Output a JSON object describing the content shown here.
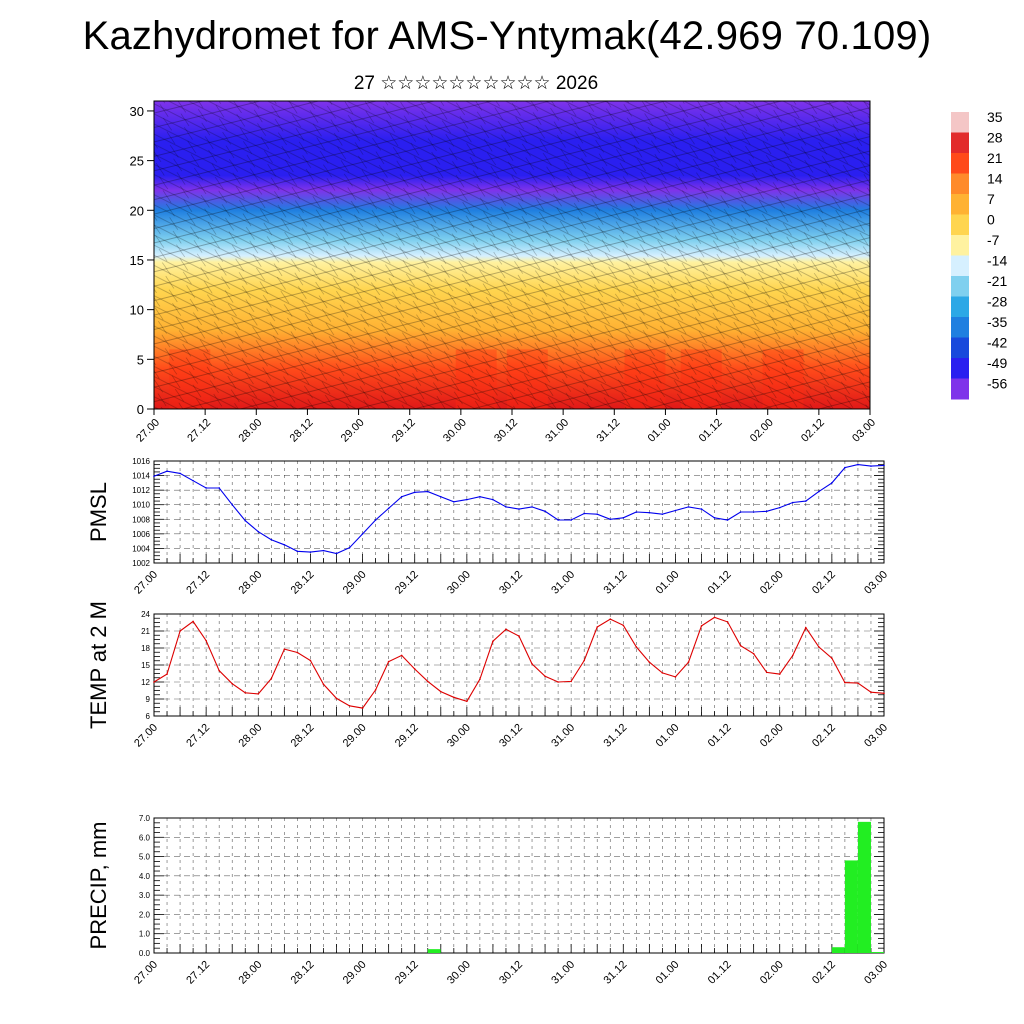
{
  "header": {
    "title": "Kazhydromet for AMS-Yntymak(42.969 70.109)",
    "subtitle": "27 ☆☆☆☆☆☆☆☆☆☆ 2026"
  },
  "x_ticks": [
    "27.00",
    "27.12",
    "28.00",
    "28.12",
    "29.00",
    "29.12",
    "30.00",
    "30.12",
    "31.00",
    "31.12",
    "01.00",
    "01.12",
    "02.00",
    "02.12",
    "03.00"
  ],
  "chart_data": [
    {
      "type": "heatmap",
      "name_id": "cross-section",
      "ylim": [
        0,
        31
      ],
      "yticks": [
        0,
        5,
        10,
        15,
        20,
        25,
        30
      ],
      "xlim": [
        0,
        14
      ],
      "colorbar": {
        "labels": [
          "35",
          "28",
          "21",
          "14",
          "7",
          "0",
          "-7",
          "-14",
          "-21",
          "-28",
          "-35",
          "-42",
          "-49",
          "-56"
        ],
        "colors": [
          "#f4c6c6",
          "#e22b2b",
          "#ff4a1a",
          "#ff8a2a",
          "#ffb233",
          "#ffd54f",
          "#fff2a0",
          "#d6f0ff",
          "#7fd0ef",
          "#2ca8e6",
          "#1f7fe0",
          "#1849dc",
          "#2a1ff0",
          "#7f33ea"
        ]
      },
      "temperature_profile": [
        {
          "height": 0,
          "value": 30
        },
        {
          "height": 4,
          "value": 18
        },
        {
          "height": 8,
          "value": 10
        },
        {
          "height": 12,
          "value": 3
        },
        {
          "height": 14.8,
          "value": -5
        },
        {
          "height": 15.4,
          "value": -12
        },
        {
          "height": 17,
          "value": -22
        },
        {
          "height": 20,
          "value": -38
        },
        {
          "height": 22,
          "value": -55
        },
        {
          "height": 23.5,
          "value": -50
        },
        {
          "height": 27,
          "value": -52
        },
        {
          "height": 31,
          "value": -56
        }
      ]
    },
    {
      "type": "line",
      "name_id": "pmsl",
      "ylabel": "PMSL",
      "ylim": [
        1002,
        1016
      ],
      "yticks": [
        1002,
        1004,
        1006,
        1008,
        1010,
        1012,
        1014,
        1016
      ],
      "color": "#0000ee",
      "x": [
        0,
        0.25,
        0.5,
        0.75,
        1,
        1.25,
        1.5,
        1.75,
        2,
        2.25,
        2.5,
        2.75,
        3,
        3.25,
        3.5,
        3.75,
        4,
        4.25,
        4.5,
        4.75,
        5,
        5.25,
        5.5,
        5.75,
        6,
        6.25,
        6.5,
        6.75,
        7,
        7.25,
        7.5,
        7.75,
        8,
        8.25,
        8.5,
        8.75,
        9,
        9.25,
        9.5,
        9.75,
        10,
        10.25,
        10.5,
        10.75,
        11,
        11.25,
        11.5,
        11.75,
        12,
        12.25,
        12.5,
        12.75,
        13,
        13.25,
        13.5,
        13.75,
        14
      ],
      "values": [
        1013.9,
        1014.6,
        1014.3,
        1013.3,
        1012.3,
        1012.3,
        1010.0,
        1007.8,
        1006.3,
        1005.2,
        1004.5,
        1003.6,
        1003.5,
        1003.7,
        1003.3,
        1004.1,
        1006.0,
        1007.9,
        1009.5,
        1011.1,
        1011.7,
        1011.8,
        1011.1,
        1010.4,
        1010.7,
        1011.1,
        1010.7,
        1009.7,
        1009.4,
        1009.7,
        1009.1,
        1007.9,
        1007.9,
        1008.8,
        1008.7,
        1008.0,
        1008.2,
        1009.0,
        1008.9,
        1008.7,
        1009.2,
        1009.7,
        1009.4,
        1008.2,
        1007.9,
        1009.0,
        1009.0,
        1009.1,
        1009.6,
        1010.3,
        1010.5,
        1011.8,
        1013.0,
        1015.1,
        1015.5,
        1015.3,
        1015.4
      ]
    },
    {
      "type": "line",
      "name_id": "temp-2m",
      "ylabel": "TEMP at 2 M",
      "ylim": [
        6,
        24
      ],
      "yticks": [
        6,
        9,
        12,
        15,
        18,
        21,
        24
      ],
      "color": "#dd0000",
      "x": [
        0,
        0.25,
        0.5,
        0.75,
        1,
        1.25,
        1.5,
        1.75,
        2,
        2.25,
        2.5,
        2.75,
        3,
        3.25,
        3.5,
        3.75,
        4,
        4.25,
        4.5,
        4.75,
        5,
        5.25,
        5.5,
        5.75,
        6,
        6.25,
        6.5,
        6.75,
        7,
        7.25,
        7.5,
        7.75,
        8,
        8.25,
        8.5,
        8.75,
        9,
        9.25,
        9.5,
        9.75,
        10,
        10.25,
        10.5,
        10.75,
        11,
        11.25,
        11.5,
        11.75,
        12,
        12.25,
        12.5,
        12.75,
        13,
        13.25,
        13.5,
        13.75,
        14
      ],
      "values": [
        12.0,
        13.4,
        21.0,
        22.7,
        19.3,
        14.0,
        11.7,
        10.1,
        9.9,
        12.6,
        17.8,
        17.2,
        15.8,
        11.6,
        9.1,
        7.8,
        7.4,
        10.6,
        15.6,
        16.7,
        14.3,
        12.1,
        10.3,
        9.3,
        8.6,
        12.5,
        19.2,
        21.3,
        20.1,
        15.2,
        13.0,
        12.0,
        12.1,
        15.8,
        21.7,
        23.1,
        22.0,
        18.2,
        15.5,
        13.6,
        12.9,
        15.5,
        21.9,
        23.4,
        22.6,
        18.4,
        17.0,
        13.7,
        13.4,
        16.7,
        21.6,
        18.2,
        16.2,
        11.9,
        11.8,
        10.2,
        10.0
      ]
    },
    {
      "type": "bar",
      "name_id": "precip",
      "ylabel": "PRECIP, mm",
      "ylim": [
        0,
        7
      ],
      "yticks": [
        "0.0",
        "1.0",
        "2.0",
        "3.0",
        "4.0",
        "5.0",
        "6.0",
        "7.0"
      ],
      "color": "#22ee22",
      "bar_width_days": 0.25,
      "x": [
        5.375,
        13.125,
        13.375,
        13.625,
        13.875
      ],
      "values": [
        0.2,
        0.3,
        4.8,
        6.8,
        0.05
      ]
    }
  ]
}
